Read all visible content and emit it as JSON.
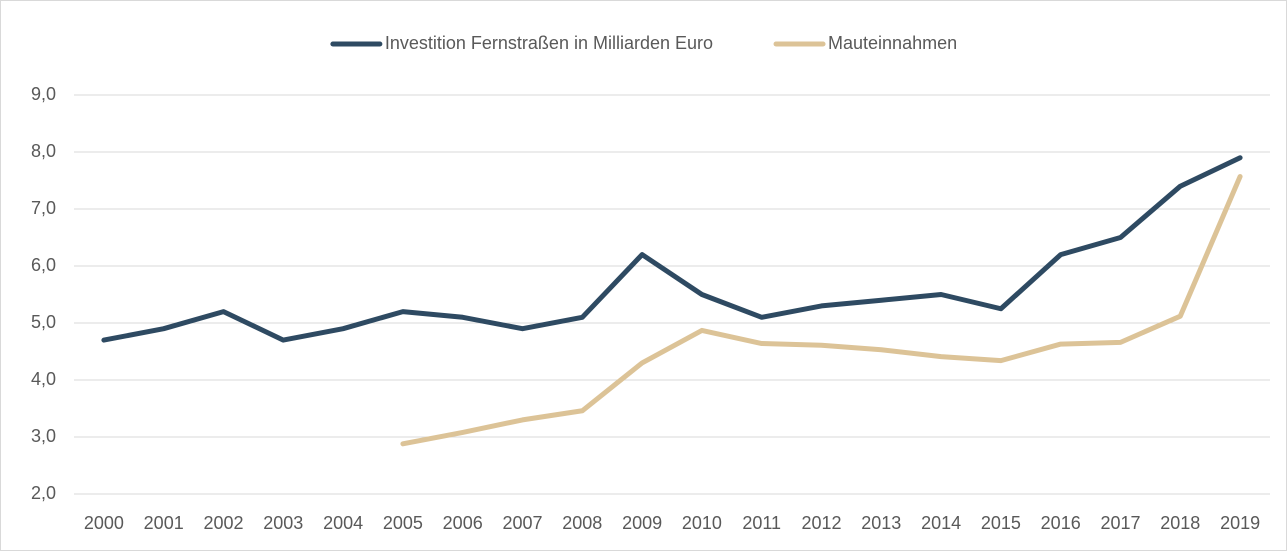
{
  "chart_data": {
    "type": "line",
    "categories": [
      "2000",
      "2001",
      "2002",
      "2003",
      "2004",
      "2005",
      "2006",
      "2007",
      "2008",
      "2009",
      "2010",
      "2011",
      "2012",
      "2013",
      "2014",
      "2015",
      "2016",
      "2017",
      "2018",
      "2019"
    ],
    "series": [
      {
        "name": "Investition Fernstraßen in Milliarden Euro",
        "color": "#2e4a62",
        "values": [
          4.7,
          4.9,
          5.2,
          4.7,
          4.9,
          5.2,
          5.1,
          4.9,
          5.1,
          6.2,
          5.5,
          5.1,
          5.3,
          5.4,
          5.5,
          5.25,
          6.2,
          6.5,
          7.4,
          7.9
        ]
      },
      {
        "name": "Mauteinnahmen",
        "color": "#dcc397",
        "values": [
          null,
          null,
          null,
          null,
          null,
          2.88,
          3.08,
          3.3,
          3.46,
          4.3,
          4.87,
          4.64,
          4.61,
          4.53,
          4.41,
          4.34,
          4.63,
          4.66,
          5.12,
          7.57
        ]
      }
    ],
    "ylim": [
      2,
      9
    ],
    "yticks": [
      {
        "value": 2,
        "label": "2,0"
      },
      {
        "value": 3,
        "label": "3,0"
      },
      {
        "value": 4,
        "label": "4,0"
      },
      {
        "value": 5,
        "label": "5,0"
      },
      {
        "value": 6,
        "label": "6,0"
      },
      {
        "value": 7,
        "label": "7,0"
      },
      {
        "value": 8,
        "label": "8,0"
      },
      {
        "value": 9,
        "label": "9,0"
      }
    ],
    "grid": true,
    "legend": "top"
  }
}
